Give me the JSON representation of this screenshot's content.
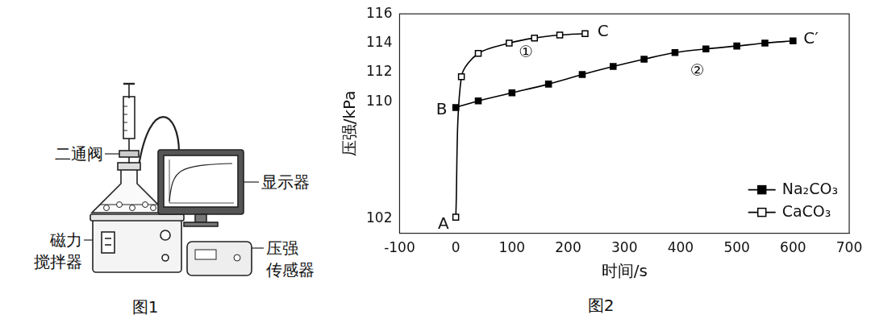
{
  "diagram": {
    "labels": {
      "valve": "二通阀",
      "display": "显示器",
      "stirrer": "磁力搅拌器",
      "sensor": "压强传感器"
    },
    "caption": "图1"
  },
  "chart_data": {
    "type": "line",
    "caption": "图2",
    "x_label": "时间/s",
    "y_label": "压强/kPa",
    "xlim": [
      -100,
      700
    ],
    "xticks": [
      -100,
      0,
      100,
      200,
      300,
      400,
      500,
      600,
      700
    ],
    "ylim": [
      101,
      116
    ],
    "yticks": [
      102,
      110,
      112,
      114,
      116
    ],
    "grid": false,
    "legend": "lower right",
    "series": [
      {
        "name": "Na₂CO₃",
        "color": "#000000",
        "marker": "square",
        "x": [
          0,
          40,
          100,
          165,
          225,
          280,
          335,
          390,
          445,
          500,
          550,
          600
        ],
        "values": [
          109.6,
          110.05,
          110.6,
          111.2,
          111.85,
          112.4,
          112.9,
          113.35,
          113.6,
          113.8,
          114.0,
          114.15
        ]
      },
      {
        "name": "CaCO₃",
        "color": "#000000",
        "marker": "open-square",
        "x": [
          0,
          10,
          40,
          95,
          140,
          185,
          230
        ],
        "values": [
          102.1,
          111.7,
          113.3,
          114.0,
          114.35,
          114.55,
          114.65
        ]
      }
    ],
    "annotations": [
      {
        "text": "A",
        "x": -22,
        "y": 101.6
      },
      {
        "text": "B",
        "x": -25,
        "y": 109.4
      },
      {
        "text": "C",
        "x": 262,
        "y": 114.75
      },
      {
        "text": "C′",
        "x": 632,
        "y": 114.25
      },
      {
        "text": "①",
        "x": 125,
        "y": 113.3
      },
      {
        "text": "②",
        "x": 430,
        "y": 112.05
      }
    ]
  }
}
